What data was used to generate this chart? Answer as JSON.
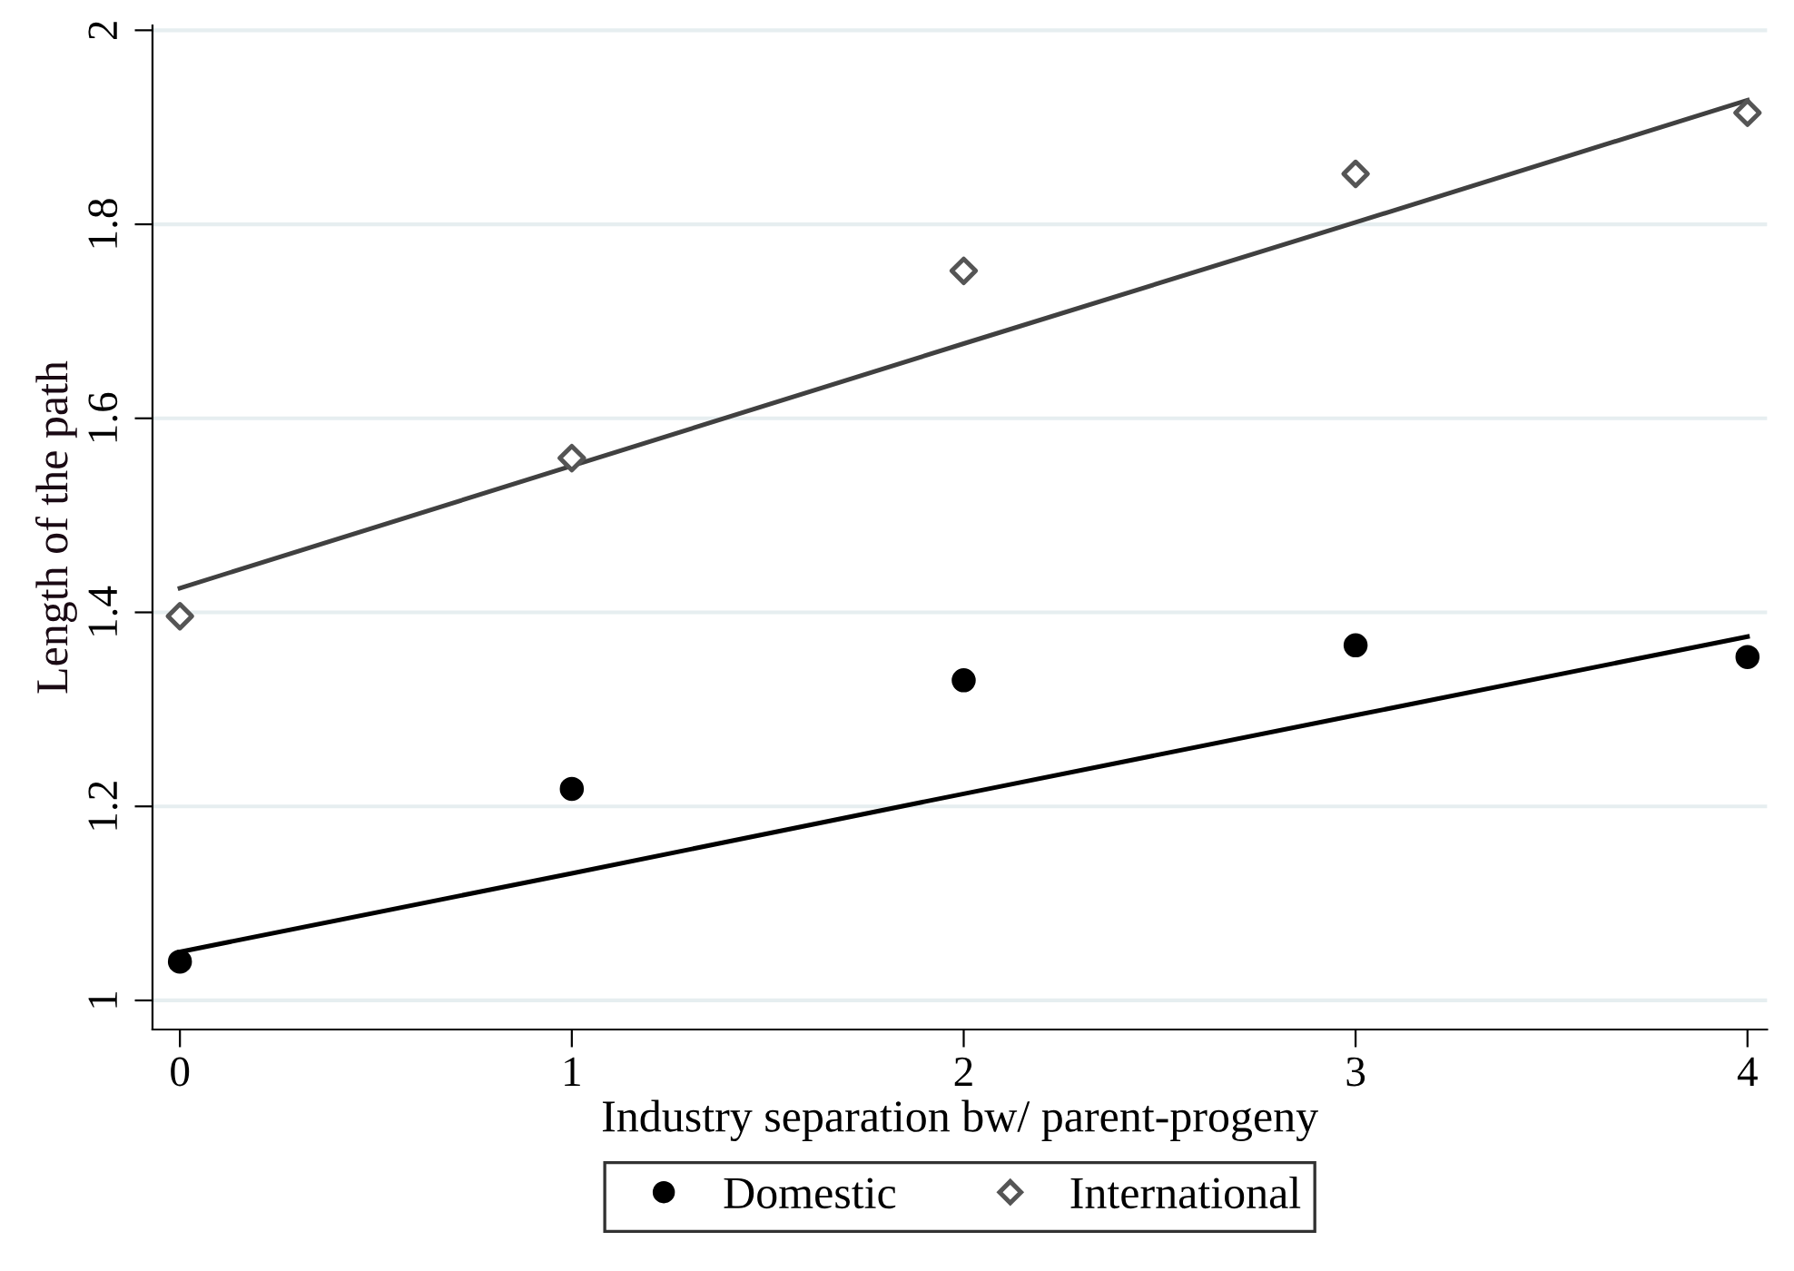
{
  "chart_data": {
    "type": "scatter",
    "xlabel": "Industry separation bw/ parent-progeny",
    "ylabel": "Length of the path",
    "x": [
      0,
      1,
      2,
      3,
      4
    ],
    "series": [
      {
        "name": "Domestic",
        "color": "#000000",
        "marker": "circle",
        "values": [
          1.04,
          1.218,
          1.33,
          1.366,
          1.354
        ]
      },
      {
        "name": "International",
        "color": "#555555",
        "marker": "diamond",
        "values": [
          1.396,
          1.559,
          1.752,
          1.852,
          1.915
        ]
      },
      {
        "type": "line",
        "color": "#000000",
        "values": [
          1.05,
          1.131,
          1.213,
          1.294,
          1.375
        ]
      },
      {
        "type": "line",
        "color": "#404040",
        "values": [
          1.425,
          1.551,
          1.677,
          1.802,
          1.928
        ]
      }
    ],
    "xlim": [
      -0.07,
      4.05
    ],
    "ylim": [
      0.97,
      2.005
    ],
    "xticks": [
      0,
      1,
      2,
      3,
      4
    ],
    "yticks": [
      1,
      1.2,
      1.4,
      1.6,
      1.8,
      2
    ],
    "grid": "y",
    "legend": "bottom"
  }
}
